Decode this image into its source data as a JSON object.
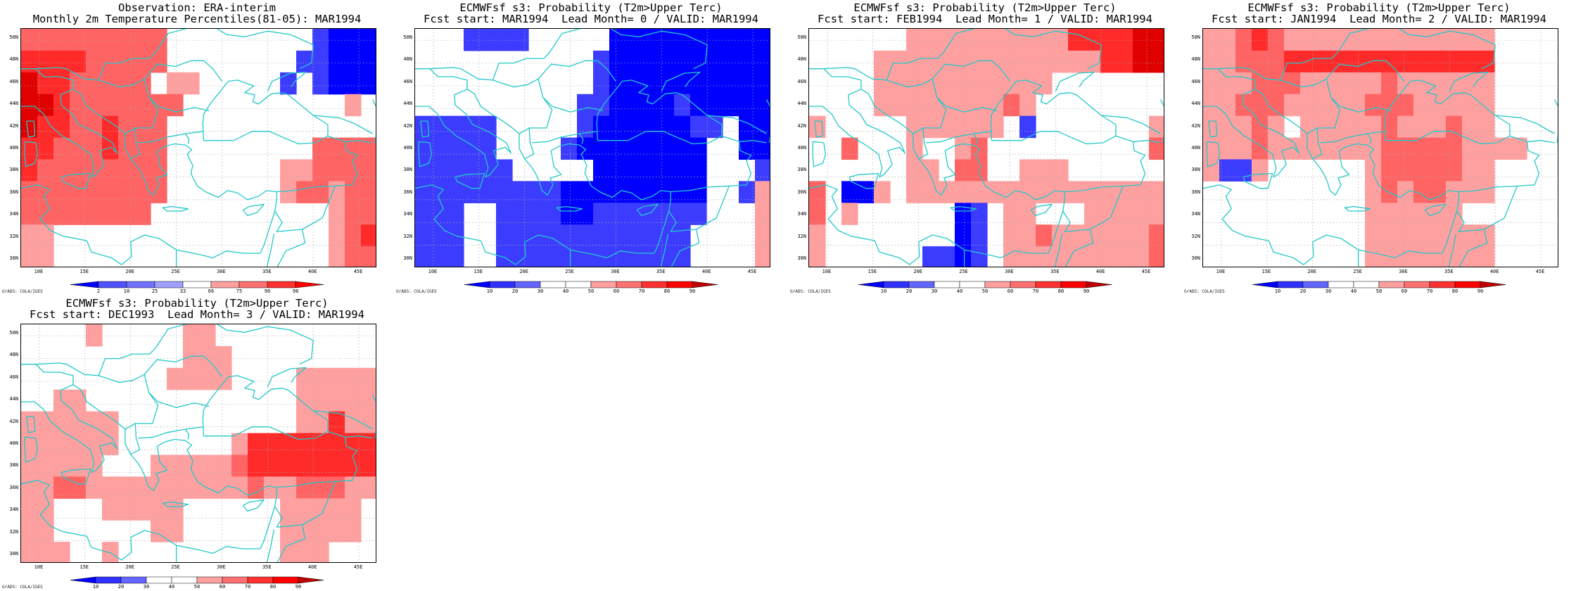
{
  "panels": [
    {
      "title_line1": "Observation: ERA-interim",
      "title_line2": "Monthly 2m Temperature Percentiles(81-05): MAR1994",
      "y_labels": [
        "50N",
        "48N",
        "46N",
        "44N",
        "42N",
        "40N",
        "38N",
        "36N",
        "34N",
        "32N",
        "30N"
      ],
      "x_labels": [
        "10E",
        "15E",
        "20E",
        "25E",
        "30E",
        "35E",
        "40E",
        "45E"
      ],
      "colorbar_labels": [
        "2",
        "10",
        "25",
        "33",
        "66",
        "75",
        "90",
        "98"
      ],
      "colorbar_colors": [
        "#0000ff",
        "#5050ff",
        "#7070ff",
        "#a0a0ff",
        "#ffffff",
        "#ffa0a0",
        "#ff7070",
        "#ff3030",
        "#ff0000"
      ],
      "grid": [
        "IIIIIIIII.........BAAA",
        "JJJJIIIII........BBAAA",
        "KJJIIIII.HH.....B.BAAA",
        "KKJIIIIIII..........H.",
        "KJJIIJIII.............",
        "JJIIIJIII.........IIII",
        "JIIIIIIII.......HHIIII",
        "IIIIIIIII.......HIIHII",
        "IIIIIIII...........HII",
        "HH.................HIJ",
        "HH.................HII"
      ],
      "grads_credit": "GrADS: COLA/IGES"
    },
    {
      "title_line1": "ECMWFsf s3: Probability (T2m>Upper Terc)",
      "title_line2": "Fcst start: MAR1994  Lead Month= 0 / VALID: MAR1994",
      "y_labels": [
        "50N",
        "48N",
        "46N",
        "44N",
        "42N",
        "40N",
        "38N",
        "36N",
        "34N",
        "32N",
        "30N"
      ],
      "x_labels": [
        "10E",
        "15E",
        "20E",
        "25E",
        "30E",
        "35E",
        "40E",
        "45E"
      ],
      "colorbar_labels": [
        "10",
        "20",
        "30",
        "40",
        "50",
        "60",
        "70",
        "80",
        "90"
      ],
      "colorbar_colors": [
        "#0000ff",
        "#3030ff",
        "#6464ff",
        "#ffffff",
        "#ffffff",
        "#ffa0a0",
        "#ff7070",
        "#ff3030",
        "#ff0000",
        "#c00000"
      ],
      "grid": [
        "...BBBB.....AAAAAAAAAA",
        "...........BAAAAAAAAAA",
        "...........BAAAAAAAAAA",
        "..........BBAAAABAAAAA",
        "BBBBB.....BAAAAAABB.AA",
        "BBBBB....BAAAAAAAA..AA",
        "BBBBBB.....AAAAAAA...B",
        "BBBBBBBBBAAAAAAAAA..BH",
        "BBB..BBBBAABBBBBBB...H",
        "BBB..BBBBBBBBBBBB....H",
        "BBB..BBBBBBBBBBBB....H"
      ],
      "grads_credit": "GrADS: COLA/IGES"
    },
    {
      "title_line1": "ECMWFsf s3: Probability (T2m>Upper Terc)",
      "title_line2": "Fcst start: FEB1994  Lead Month= 1 / VALID: MAR1994",
      "y_labels": [
        "50N",
        "48N",
        "46N",
        "44N",
        "42N",
        "40N",
        "38N",
        "36N",
        "34N",
        "32N",
        "30N"
      ],
      "x_labels": [
        "10E",
        "15E",
        "20E",
        "25E",
        "30E",
        "35E",
        "40E",
        "45E"
      ],
      "colorbar_labels": [
        "10",
        "20",
        "30",
        "40",
        "50",
        "60",
        "70",
        "80",
        "90"
      ],
      "colorbar_colors": [
        "#0000ff",
        "#3030ff",
        "#6464ff",
        "#ffffff",
        "#ffffff",
        "#ffa0a0",
        "#ff7070",
        "#ff3030",
        "#ff0000",
        "#c00000"
      ],
      "grid": [
        "......HHHHHHHHHHJJJJKK",
        "....HHHHHHHHHHHHHHJJKK",
        "....HHHHHHHHHHH.......",
        "....HHHHHHHHIH........",
        "H.....HHHHHH.B.......H",
        "..I...H..HI..........I",
        "......HH.II..HHH......",
        "I.AAH.HHHHHHHHHHHHHHHH",
        "I.H......AB.HH...HHHHH",
        "H........AB.HHIHHHHHHI",
        "H......BBAB.HHHHHHHHHI"
      ],
      "grads_credit": "GrADS: COLA/IGES"
    },
    {
      "title_line1": "ECMWFsf s3: Probability (T2m>Upper Terc)",
      "title_line2": "Fcst start: JAN1994  Lead Month= 2 / VALID: MAR1994",
      "y_labels": [
        "50N",
        "48N",
        "46N",
        "44N",
        "42N",
        "40N",
        "38N",
        "36N",
        "34N",
        "32N",
        "30N"
      ],
      "x_labels": [
        "10E",
        "15E",
        "20E",
        "25E",
        "30E",
        "35E",
        "40E",
        "45E"
      ],
      "colorbar_labels": [
        "10",
        "20",
        "30",
        "40",
        "50",
        "60",
        "70",
        "80",
        "90"
      ],
      "colorbar_colors": [
        "#0000ff",
        "#3030ff",
        "#6464ff",
        "#ffffff",
        "#ffffff",
        "#ffa0a0",
        "#ff7070",
        "#ff3030",
        "#ff0000",
        "#c00000"
      ],
      "grid": [
        "HHIJIHHHHHHHHHHHHH....",
        "HHIIIJJJJJJJJJJJJJ....",
        "HHHIIIHHHHHIHHHHHH....",
        "HHIIIHHHHHIIIHHHHH....",
        "HHHIH.HHHHHIHHHIHH....",
        "HHHIHHHHHHHIIIIIHHHH..",
        "HBBH......HIIIIIHH....",
        "..........HIHIIHHH....",
        "..........HHHHHH......",
        "..........HHHHHHHH....",
        "..........HHHHHHHH...."
      ],
      "grads_credit": "GrADS: COLA/IGES"
    },
    {
      "title_line1": "ECMWFsf s3: Probability (T2m>Upper Terc)",
      "title_line2": "Fcst start: DEC1993  Lead Month= 3 / VALID: MAR1994",
      "y_labels": [
        "50N",
        "48N",
        "46N",
        "44N",
        "42N",
        "40N",
        "38N",
        "36N",
        "34N",
        "32N",
        "30N"
      ],
      "x_labels": [
        "10E",
        "15E",
        "20E",
        "25E",
        "30E",
        "35E",
        "40E",
        "45E"
      ],
      "colorbar_labels": [
        "10",
        "20",
        "30",
        "40",
        "50",
        "60",
        "70",
        "80",
        "90"
      ],
      "colorbar_colors": [
        "#0000ff",
        "#3030ff",
        "#6464ff",
        "#ffffff",
        "#ffffff",
        "#ffa0a0",
        "#ff7070",
        "#ff3030",
        "#ff0000",
        "#c00000"
      ],
      "grid": [
        "....H.....HH..........",
        "..........HHH.........",
        ".........HHHH....HHHHH",
        "..HH.............HHHHH",
        "HHHHHH...........HHJHH",
        "HHHHHH.......HJJJJJJJJ",
        "HHHHH...HHHHHIJJJJJJJJ",
        "HHIIHHHHHHHHHHIHHIIIHH",
        "HH...HHHHH......HHHHH.",
        "HH......HH......HHHHH.",
        "HHH..H..........HHH..."
      ],
      "grads_credit": "GrADS: COLA/IGES"
    }
  ]
}
